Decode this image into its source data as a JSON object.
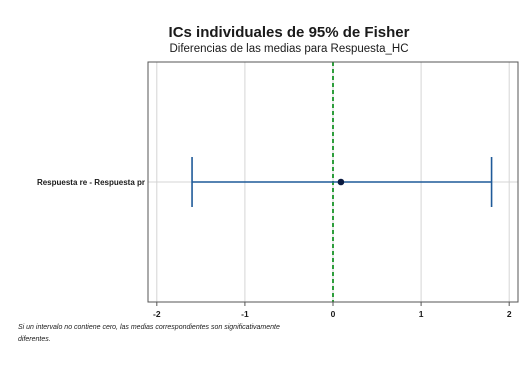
{
  "chart_data": {
    "type": "interval",
    "title": "ICs individuales de 95% de Fisher",
    "subtitle": "Diferencias de las medias para Respuesta_HC",
    "categories": [
      "Respuesta re - Respuesta pr"
    ],
    "intervals": [
      {
        "label": "Respuesta re - Respuesta pr",
        "lower": -1.6,
        "estimate": 0.09,
        "upper": 1.8
      }
    ],
    "xlim": [
      -2.1,
      2.1
    ],
    "x_ticks": [
      -2,
      -1,
      0,
      1,
      2
    ],
    "reference_line": 0,
    "grid": true,
    "footnote_lines": [
      "Si un intervalo no contiene cero, las medias correspondientes son significativamente",
      "diferentes."
    ],
    "colors": {
      "interval": "#1f5a99",
      "estimate": "#0a1a40",
      "reference_line": "#2e9e3c",
      "grid": "#d4d4d4",
      "frame": "#555555"
    }
  }
}
